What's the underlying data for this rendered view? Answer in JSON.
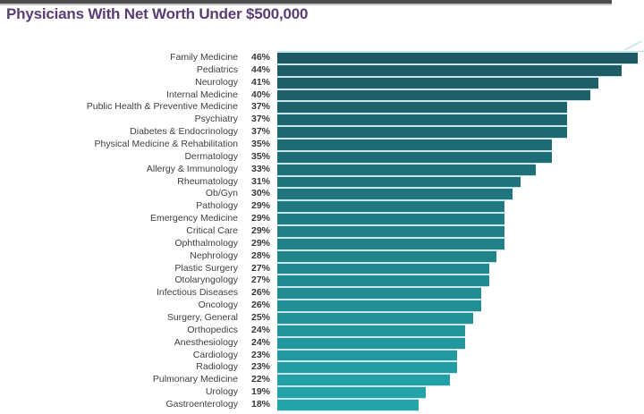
{
  "header": {
    "title": "Physicians With Net Worth Under $500,000",
    "title_color": "#5a3d75",
    "top_bar_color": "#4d4d4d"
  },
  "chart_data": {
    "type": "bar",
    "orientation": "horizontal",
    "title": "Physicians With Net Worth Under $500,000",
    "xlabel": "",
    "ylabel": "",
    "unit": "%",
    "xlim": [
      0,
      46
    ],
    "grid": false,
    "legend": "none",
    "bar_color_start": "#1d5862",
    "bar_color_end": "#23a5aa",
    "separator_color": "#c9e7ea",
    "categories": [
      "Family Medicine",
      "Pediatrics",
      "Neurology",
      "Internal Medicine",
      "Public Health & Preventive Medicine",
      "Psychiatry",
      "Diabetes & Endocrinology",
      "Physical Medicine & Rehabilitation",
      "Dermatology",
      "Allergy & Immunology",
      "Rheumatology",
      "Ob/Gyn",
      "Pathology",
      "Emergency Medicine",
      "Critical Care",
      "Ophthalmology",
      "Nephrology",
      "Plastic Surgery",
      "Otolaryngology",
      "Infectious Diseases",
      "Oncology",
      "Surgery, General",
      "Orthopedics",
      "Anesthesiology",
      "Cardiology",
      "Radiology",
      "Pulmonary Medicine",
      "Urology",
      "Gastroenterology"
    ],
    "values": [
      46,
      44,
      41,
      40,
      37,
      37,
      37,
      35,
      35,
      33,
      31,
      30,
      29,
      29,
      29,
      29,
      28,
      27,
      27,
      26,
      26,
      25,
      24,
      24,
      23,
      23,
      22,
      19,
      18
    ],
    "value_labels": [
      "46%",
      "44%",
      "41%",
      "40%",
      "37%",
      "37%",
      "37%",
      "35%",
      "35%",
      "33%",
      "31%",
      "30%",
      "29%",
      "29%",
      "29%",
      "29%",
      "28%",
      "27%",
      "27%",
      "26%",
      "26%",
      "25%",
      "24%",
      "24%",
      "23%",
      "23%",
      "22%",
      "19%",
      "18%"
    ]
  }
}
